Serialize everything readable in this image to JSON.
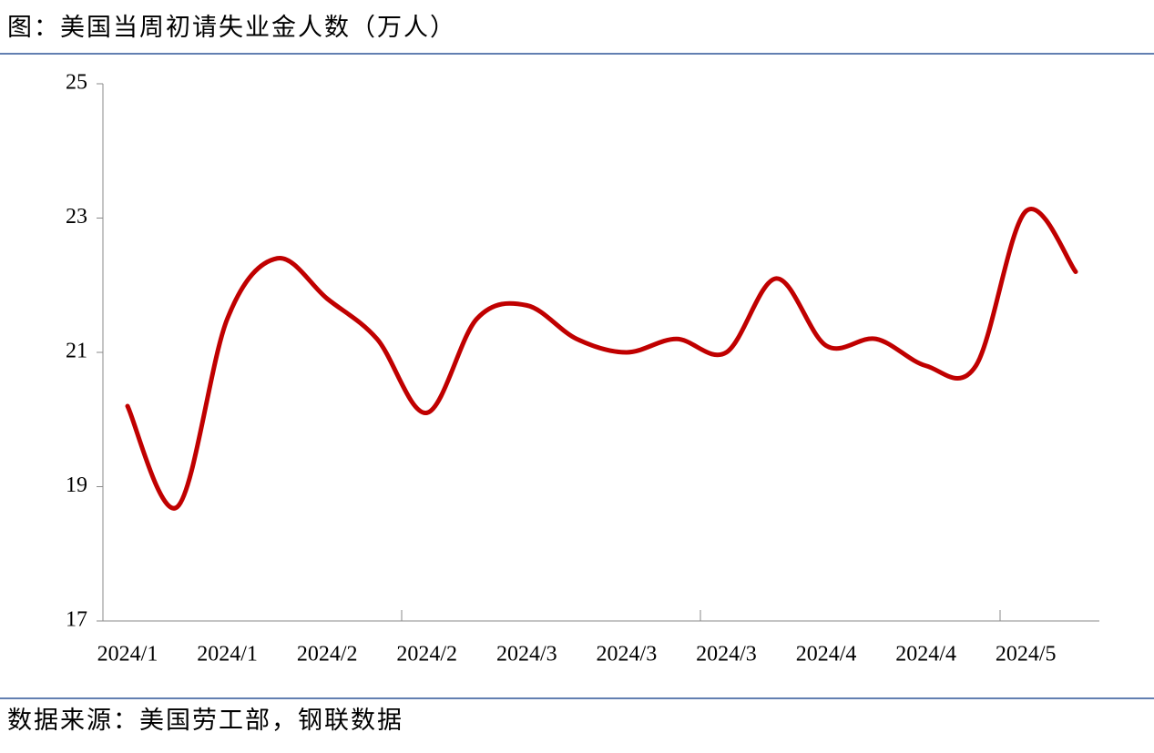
{
  "chart_data": {
    "type": "line",
    "title": "图：美国当周初请失业金人数（万人）",
    "source": "数据来源：美国劳工部，钢联数据",
    "categories": [
      "2024/1",
      null,
      "2024/1",
      null,
      "2024/2",
      null,
      "2024/2",
      null,
      "2024/3",
      null,
      "2024/3",
      null,
      "2024/3",
      null,
      "2024/4",
      null,
      "2024/4",
      null,
      "2024/5",
      null
    ],
    "series": [
      {
        "name": "美国当周初请失业金人数",
        "color": "#c00000",
        "values": [
          20.2,
          18.7,
          21.5,
          22.4,
          21.8,
          21.2,
          20.1,
          21.5,
          21.7,
          21.2,
          21.0,
          21.2,
          21.0,
          22.1,
          21.1,
          21.2,
          20.8,
          20.8,
          23.1,
          22.2
        ]
      }
    ],
    "ylim": [
      17,
      25
    ],
    "yticks": [
      17,
      19,
      21,
      23,
      25
    ]
  }
}
